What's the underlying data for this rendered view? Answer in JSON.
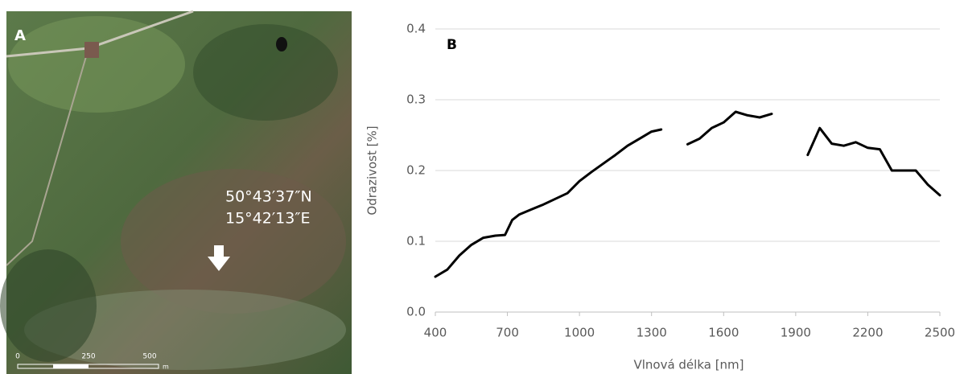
{
  "image_panel": {
    "label": "A",
    "coordinates": [
      "50°43′37″N",
      "15°42′13″E"
    ],
    "scale_labels": [
      "0",
      "250",
      "500",
      "m"
    ]
  },
  "chart_data": {
    "type": "line",
    "title": "B",
    "x_label": "Vlnová délka [nm]",
    "y_label": "Odrazivost [%]",
    "x": [
      400,
      450,
      500,
      550,
      600,
      650,
      690,
      720,
      750,
      800,
      850,
      900,
      950,
      1000,
      1050,
      1100,
      1150,
      1200,
      1250,
      1300,
      1340,
      1400,
      1450,
      1500,
      1550,
      1600,
      1650,
      1700,
      1750,
      1800,
      1850,
      1950,
      2000,
      2050,
      2100,
      2150,
      2200,
      2250,
      2300,
      2350,
      2400,
      2450,
      2500
    ],
    "values": [
      0.05,
      0.06,
      0.08,
      0.095,
      0.105,
      0.108,
      0.109,
      0.13,
      0.138,
      0.145,
      0.152,
      0.16,
      0.168,
      0.185,
      0.198,
      0.21,
      0.222,
      0.235,
      0.245,
      0.255,
      0.258,
      null,
      0.237,
      0.245,
      0.26,
      0.268,
      0.283,
      0.278,
      0.275,
      0.28,
      null,
      0.222,
      0.26,
      0.238,
      0.235,
      0.24,
      0.232,
      0.23,
      0.2,
      0.2,
      0.2,
      0.18,
      0.165
    ],
    "color": "#000000",
    "xlim": [
      400,
      2500
    ],
    "xticks": [
      400,
      700,
      1000,
      1300,
      1600,
      1900,
      2200,
      2500
    ],
    "ylim": [
      0,
      0.4
    ],
    "yticks": [
      {
        "value": 0,
        "label": "0.0"
      },
      0.1,
      0.2,
      0.3,
      0.4
    ],
    "grid": true
  }
}
